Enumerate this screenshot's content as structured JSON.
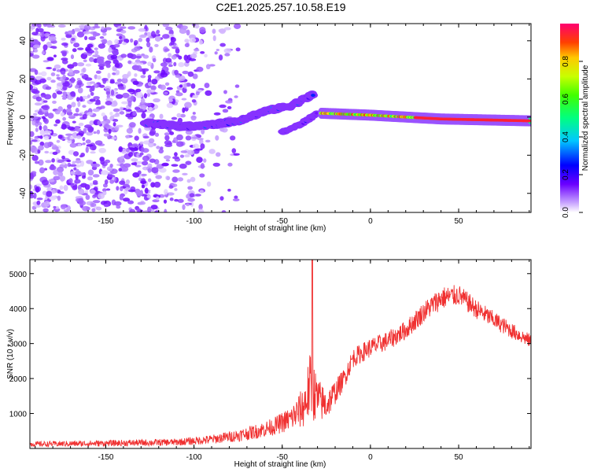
{
  "title": "C2E1.2025.257.10.58.E19",
  "chart_data": [
    {
      "type": "heatmap",
      "xlabel": "Height of straight line (km)",
      "ylabel": "Frequency (Hz)",
      "xlim": [
        -193,
        91
      ],
      "ylim": [
        -50,
        49
      ],
      "x_ticks": [
        -150,
        -100,
        -50,
        0,
        50
      ],
      "y_ticks": [
        -40,
        -20,
        0,
        20,
        40
      ],
      "colorbar": {
        "label": "Normalized spectral amplitude",
        "range": [
          0,
          1
        ],
        "ticks": [
          "0.0",
          "0.2",
          "0.4",
          "0.6",
          "0.8"
        ],
        "tick_values": [
          0,
          0.2,
          0.4,
          0.6,
          0.8
        ]
      },
      "features": [
        {
          "name": "broadband noise",
          "x_range": [
            -193,
            -95
          ],
          "amplitude": 0.08
        },
        {
          "name": "rising track",
          "points": [
            [
              -128,
              -3
            ],
            [
              -105,
              -5
            ],
            [
              -90,
              -4
            ],
            [
              -75,
              -2
            ],
            [
              -60,
              3
            ],
            [
              -45,
              6
            ],
            [
              -32,
              12
            ]
          ],
          "amplitude": 0.3
        },
        {
          "name": "branch",
          "points": [
            [
              -50,
              -8
            ],
            [
              -40,
              -4
            ],
            [
              -30,
              2
            ]
          ],
          "amplitude": 0.2
        },
        {
          "name": "stable line",
          "points": [
            [
              -28,
              2
            ],
            [
              0,
              1
            ],
            [
              40,
              -1
            ],
            [
              91,
              -2
            ]
          ],
          "amplitude": 0.95
        }
      ]
    },
    {
      "type": "line",
      "xlabel": "Height of straight line (km)",
      "ylabel": "SNR (10 * v/v)",
      "xlim": [
        -193,
        91
      ],
      "ylim": [
        0,
        5400
      ],
      "x_ticks": [
        -150,
        -100,
        -50,
        0,
        50
      ],
      "y_ticks": [
        1000,
        2000,
        3000,
        4000,
        5000
      ],
      "color": "#f03030",
      "envelope": {
        "x": [
          -193,
          -150,
          -110,
          -100,
          -90,
          -75,
          -65,
          -55,
          -45,
          -38,
          -34,
          -30,
          -25,
          -20,
          -15,
          -10,
          0,
          10,
          20,
          30,
          40,
          50,
          60,
          70,
          80,
          91
        ],
        "baseline": [
          100,
          120,
          150,
          180,
          220,
          320,
          420,
          550,
          750,
          1000,
          1500,
          1200,
          1100,
          1500,
          1900,
          2500,
          2800,
          3000,
          3300,
          3800,
          4200,
          4300,
          3900,
          3600,
          3300,
          3000
        ],
        "spread": [
          150,
          180,
          200,
          230,
          260,
          350,
          420,
          500,
          700,
          1200,
          2000,
          1300,
          900,
          700,
          600,
          550,
          550,
          550,
          550,
          600,
          650,
          600,
          550,
          500,
          450,
          400
        ]
      },
      "spike": {
        "x": -33,
        "y": 5400
      }
    }
  ]
}
